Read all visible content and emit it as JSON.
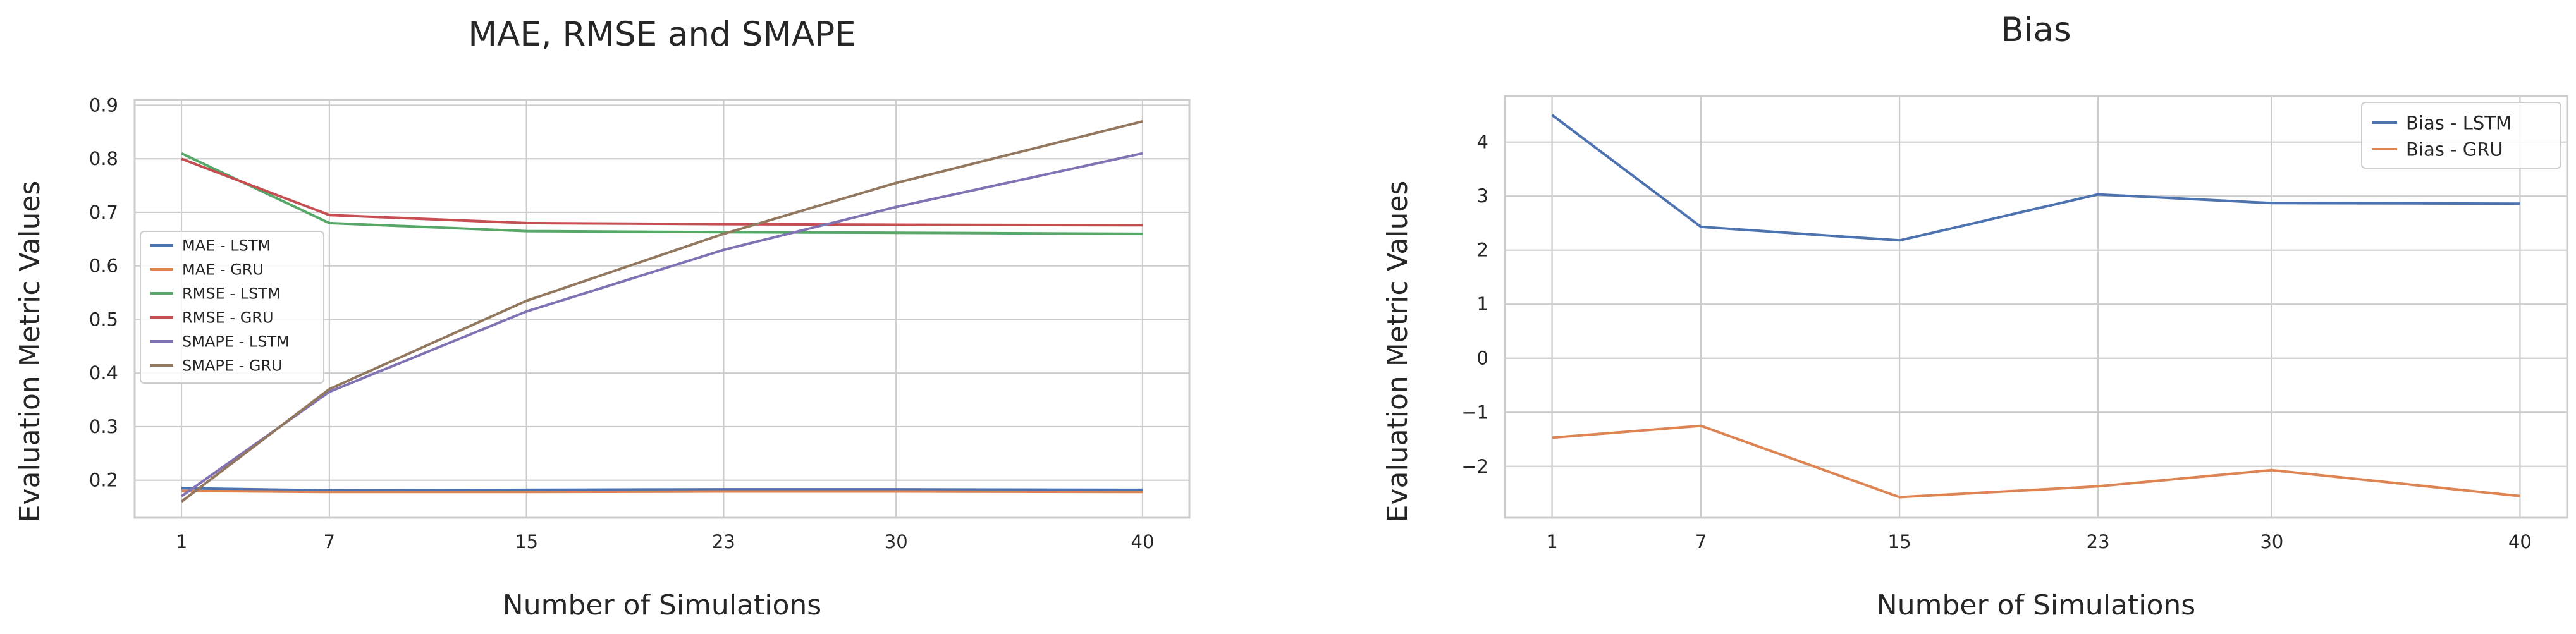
{
  "chart_data": [
    {
      "type": "line",
      "title": "MAE, RMSE and SMAPE",
      "xlabel": "Number of Simulations",
      "ylabel": "Evaluation Metric Values",
      "x": [
        1,
        7,
        15,
        23,
        30,
        40
      ],
      "ylim": [
        0.13,
        0.91
      ],
      "yticks": [
        0.2,
        0.3,
        0.4,
        0.5,
        0.6,
        0.7,
        0.8,
        0.9
      ],
      "ytick_labels": [
        "0.2",
        "0.3",
        "0.4",
        "0.5",
        "0.6",
        "0.7",
        "0.8",
        "0.9"
      ],
      "xlim": [
        -0.9,
        41.9
      ],
      "grid": true,
      "legend_position": "center-left",
      "series": [
        {
          "name": "MAE - LSTM",
          "color": "#4c72b0",
          "values": [
            0.185,
            0.181,
            0.182,
            0.183,
            0.183,
            0.182
          ]
        },
        {
          "name": "MAE - GRU",
          "color": "#dd8452",
          "values": [
            0.18,
            0.178,
            0.178,
            0.179,
            0.179,
            0.178
          ]
        },
        {
          "name": "RMSE - LSTM",
          "color": "#55a868",
          "values": [
            0.81,
            0.68,
            0.665,
            0.663,
            0.662,
            0.66
          ]
        },
        {
          "name": "RMSE - GRU",
          "color": "#c44e52",
          "values": [
            0.8,
            0.695,
            0.68,
            0.678,
            0.677,
            0.676
          ]
        },
        {
          "name": "SMAPE - LSTM",
          "color": "#8172b3",
          "values": [
            0.17,
            0.365,
            0.515,
            0.63,
            0.71,
            0.81
          ]
        },
        {
          "name": "SMAPE - GRU",
          "color": "#937860",
          "values": [
            0.16,
            0.37,
            0.535,
            0.66,
            0.755,
            0.87
          ]
        }
      ]
    },
    {
      "type": "line",
      "title": "Bias",
      "xlabel": "Number of Simulations",
      "ylabel": "Evaluation Metric Values",
      "x": [
        1,
        7,
        15,
        23,
        30,
        40
      ],
      "ylim": [
        -2.95,
        4.85
      ],
      "yticks": [
        -2,
        -1,
        0,
        1,
        2,
        3,
        4
      ],
      "ytick_labels": [
        "−2",
        "−1",
        "0",
        "1",
        "2",
        "3",
        "4"
      ],
      "xlim": [
        -0.9,
        41.9
      ],
      "grid": true,
      "legend_position": "top-right",
      "series": [
        {
          "name": "Bias - LSTM",
          "color": "#4c72b0",
          "values": [
            4.5,
            2.43,
            2.18,
            3.03,
            2.87,
            2.86
          ]
        },
        {
          "name": "Bias - GRU",
          "color": "#dd8452",
          "values": [
            -1.47,
            -1.25,
            -2.57,
            -2.37,
            -2.07,
            -2.55
          ]
        }
      ]
    }
  ]
}
